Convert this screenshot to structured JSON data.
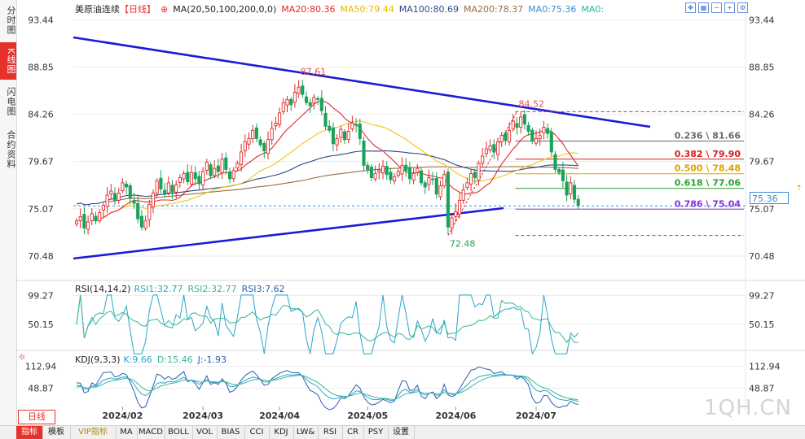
{
  "side_tabs": [
    "分时图",
    "K线图",
    "闪电图",
    "合约资料"
  ],
  "side_active": 1,
  "header": {
    "name": "美原油连续",
    "period": "【日线】",
    "ma_label": "MA(20,50,100,200,0,0)",
    "ma20": "MA20:80.36",
    "ma50": "MA50:79.44",
    "ma100": "MA100:80.69",
    "ma200": "MA200:78.37",
    "ma0": "MA0:75.36",
    "ma0b": "MA0:"
  },
  "colors": {
    "up": "#e02a2a",
    "down": "#19a35a",
    "ma20": "#e02a2a",
    "ma50": "#f0c419",
    "ma100": "#2a4a8a",
    "ma200": "#9b6b3f",
    "ma0": "#3b8bd6",
    "trend": "#1b1bd6",
    "rsi1": "#2aa6c8",
    "rsi2": "#3ab59a",
    "kdj_k": "#2aa6c8",
    "kdj_d": "#3ab59a",
    "kdj_j": "#2a5fb0"
  },
  "period_button": "日线",
  "watermark": "1QH.CN",
  "rsi_label": {
    "title": "RSI(14,14,2)",
    "r1": "RSI1:32.77",
    "r2": "RSI2:32.77",
    "r3": "RSI3:7.62"
  },
  "kdj_label": {
    "title": "KDJ(9,3,3)",
    "k": "K:9.66",
    "d": "D:15.46",
    "j": "J:-1.93"
  },
  "bottom_tabs": [
    "指标",
    "模板",
    "VIP指标",
    "MA",
    "MACD",
    "BOLL",
    "VOL",
    "BIAS",
    "CCI",
    "KDJ",
    "LW&",
    "RSI",
    "CR",
    "PSY",
    "设置"
  ],
  "price_badge": "75.36",
  "chart_data": [
    {
      "type": "candlestick",
      "title": "美原油连续",
      "y_ticks": [
        93.44,
        88.85,
        84.26,
        79.67,
        75.07,
        70.48
      ],
      "y_tick_labels": [
        "93.44",
        "88.85",
        "84.26",
        "79.67",
        "75.07",
        "70.48"
      ],
      "ylim": [
        68.5,
        94.9
      ],
      "x_labels": [
        "2024/02",
        "2024/03",
        "2024/04",
        "2024/05",
        "2024/06",
        "2024/07"
      ],
      "annotations": [
        {
          "text": "87.61",
          "value": 87.61,
          "type": "high"
        },
        {
          "text": "84.52",
          "value": 84.52,
          "type": "high"
        },
        {
          "text": "72.48",
          "value": 72.48,
          "type": "low"
        }
      ],
      "fib_levels": [
        {
          "text": "0.236 \\ 81.66",
          "value": 81.66,
          "color": "#666666"
        },
        {
          "text": "0.382 \\ 79.90",
          "value": 79.9,
          "color": "#d62020"
        },
        {
          "text": "0.500 \\ 78.48",
          "value": 78.48,
          "color": "#e0a000"
        },
        {
          "text": "0.618 \\ 77.06",
          "value": 77.06,
          "color": "#2aa02a"
        },
        {
          "text": "0.786 \\ 75.04",
          "value": 75.04,
          "color": "#8a2be2"
        }
      ],
      "fib_dashed": [
        84.52,
        72.48
      ],
      "current_price": 75.36,
      "closes": [
        73.9,
        74.3,
        73.2,
        73.8,
        74.6,
        73.9,
        74.7,
        75.4,
        76.4,
        76.8,
        75.9,
        76.6,
        77.6,
        77.2,
        76.1,
        75.6,
        74.1,
        73.3,
        73.9,
        75.5,
        76.6,
        77.8,
        77.0,
        76.5,
        77.6,
        76.7,
        77.4,
        78.1,
        78.5,
        77.7,
        78.6,
        78.0,
        77.5,
        78.7,
        79.6,
        78.3,
        79.0,
        78.7,
        79.9,
        78.9,
        78.0,
        78.8,
        79.5,
        80.6,
        81.6,
        81.9,
        82.7,
        81.9,
        81.3,
        80.7,
        81.8,
        82.9,
        83.4,
        84.4,
        85.4,
        85.7,
        85.2,
        86.4,
        86.9,
        86.2,
        85.4,
        85.1,
        85.9,
        85.7,
        84.6,
        83.1,
        82.7,
        81.4,
        81.9,
        82.8,
        81.8,
        82.6,
        83.4,
        83.2,
        81.9,
        79.3,
        78.9,
        78.1,
        78.5,
        78.8,
        79.2,
        78.4,
        77.9,
        78.2,
        78.7,
        79.3,
        78.8,
        78.0,
        78.5,
        79.0,
        77.6,
        77.2,
        78.1,
        77.9,
        76.5,
        77.3,
        78.4,
        73.3,
        74.2,
        74.8,
        75.9,
        76.9,
        77.6,
        78.5,
        78.1,
        79.5,
        80.2,
        80.9,
        81.2,
        80.6,
        81.6,
        82.2,
        81.7,
        82.7,
        83.6,
        83.0,
        84.0,
        83.3,
        82.6,
        81.7,
        81.9,
        82.2,
        83.0,
        82.4,
        80.6,
        78.9,
        78.6,
        77.8,
        76.4,
        77.6,
        76.0,
        75.4
      ]
    },
    {
      "type": "line",
      "title": "RSI(14,14,2)",
      "y_ticks": [
        99.27,
        50.15
      ],
      "y_tick_labels": [
        "99.27",
        "50.15"
      ],
      "ylim": [
        10,
        104
      ]
    },
    {
      "type": "line",
      "title": "KDJ(9,3,3)",
      "y_ticks": [
        112.94,
        48.87
      ],
      "y_tick_labels": [
        "112.94",
        "48.87"
      ],
      "ylim": [
        -5,
        124
      ]
    }
  ]
}
